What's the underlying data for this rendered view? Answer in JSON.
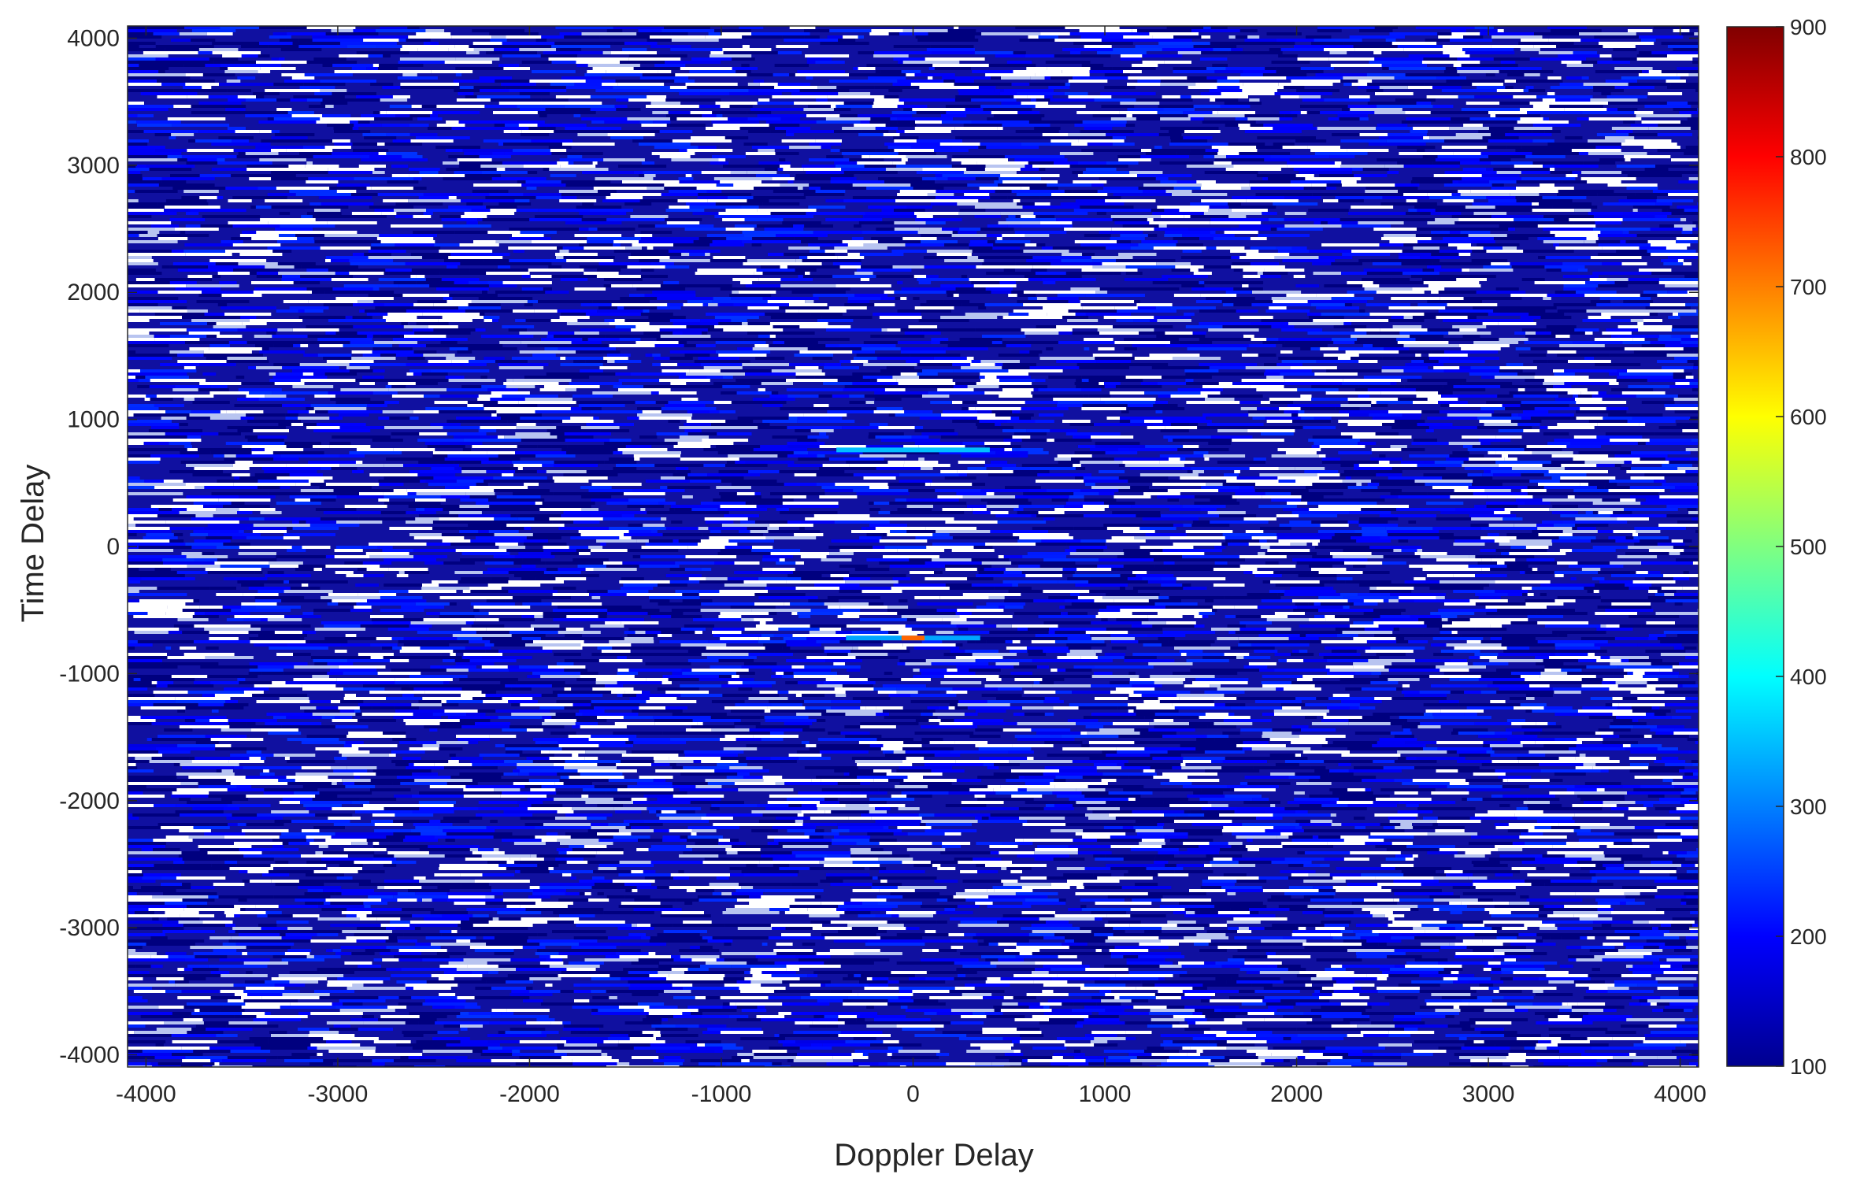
{
  "chart_data": {
    "type": "heatmap",
    "title": "",
    "xlabel": "Doppler Delay",
    "ylabel": "Time Delay",
    "xlim": [
      -4096,
      4096
    ],
    "ylim": [
      -4096,
      4096
    ],
    "x_ticks": [
      -4000,
      -3000,
      -2000,
      -1000,
      0,
      1000,
      2000,
      3000,
      4000
    ],
    "y_ticks": [
      -4000,
      -3000,
      -2000,
      -1000,
      0,
      1000,
      2000,
      3000,
      4000
    ],
    "x_tick_labels": [
      "-4000",
      "-3000",
      "-2000",
      "-1000",
      "0",
      "1000",
      "2000",
      "3000",
      "4000"
    ],
    "y_tick_labels": [
      "-4000",
      "-3000",
      "-2000",
      "-1000",
      "0",
      "1000",
      "2000",
      "3000",
      "4000"
    ],
    "colormap": "jet",
    "background_color": "#1010a0",
    "dropout_color": "#ffffff",
    "colorbar": {
      "min": 100,
      "max": 900,
      "ticks": [
        100,
        200,
        300,
        400,
        500,
        600,
        700,
        800,
        900
      ],
      "tick_labels": [
        "100",
        "200",
        "300",
        "400",
        "500",
        "600",
        "700",
        "800",
        "900"
      ]
    },
    "features": [
      {
        "x": [
          -400,
          400
        ],
        "y": 760,
        "value": 350
      },
      {
        "x": [
          -350,
          350
        ],
        "y": -720,
        "value": 330
      },
      {
        "x": [
          -60,
          60
        ],
        "y": -720,
        "value": 720
      }
    ],
    "grid": false,
    "legend": "none"
  }
}
